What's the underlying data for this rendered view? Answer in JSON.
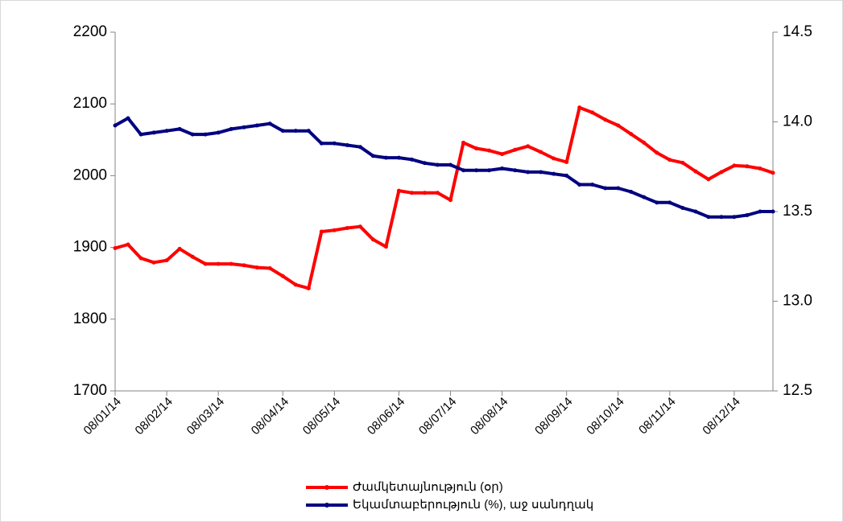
{
  "chart_data": {
    "type": "line",
    "categories": [
      "08/01/14",
      null,
      null,
      null,
      "08/02/14",
      null,
      null,
      null,
      "08/03/14",
      null,
      null,
      null,
      null,
      "08/04/14",
      null,
      null,
      null,
      "08/05/14",
      null,
      null,
      null,
      null,
      "08/06/14",
      null,
      null,
      null,
      "08/07/14",
      null,
      null,
      null,
      "08/08/14",
      null,
      null,
      null,
      null,
      "08/09/14",
      null,
      null,
      null,
      "08/10/14",
      null,
      null,
      null,
      "08/11/14",
      null,
      null,
      null,
      null,
      "08/12/14",
      null,
      null,
      null
    ],
    "series": [
      {
        "name": "Ժամկետայնություն  (օր)",
        "color": "#ff0000",
        "values": [
          1899,
          1904,
          1885,
          1879,
          1882,
          1898,
          1887,
          1877,
          1877,
          1877,
          1875,
          1872,
          1871,
          1860,
          1848,
          1843,
          1922,
          1924,
          1927,
          1929,
          1911,
          1901,
          1979,
          1976,
          1976,
          1976,
          1966,
          2046,
          2038,
          2035,
          2030,
          2036,
          2041,
          2033,
          2024,
          2019,
          2095,
          2088,
          2078,
          2070,
          2058,
          2046,
          2032,
          2022,
          2018,
          2006,
          1995,
          2005,
          2014,
          2013,
          2010,
          2004
        ]
      },
      {
        "name": "Եկամտաբերություն  (%), աջ սանդղակ",
        "color": "#000080",
        "axis": "y2",
        "values": [
          13.98,
          14.02,
          13.93,
          13.94,
          13.95,
          13.96,
          13.93,
          13.93,
          13.94,
          13.96,
          13.97,
          13.98,
          13.99,
          13.95,
          13.95,
          13.95,
          13.88,
          13.88,
          13.87,
          13.86,
          13.81,
          13.8,
          13.8,
          13.79,
          13.77,
          13.76,
          13.76,
          13.73,
          13.73,
          13.73,
          13.74,
          13.73,
          13.72,
          13.72,
          13.71,
          13.7,
          13.65,
          13.65,
          13.63,
          13.63,
          13.61,
          13.58,
          13.55,
          13.55,
          13.52,
          13.5,
          13.47,
          13.47,
          13.47,
          13.48,
          13.5,
          13.5
        ]
      }
    ],
    "ylim": [
      1700,
      2200
    ],
    "yticks": [
      1700,
      1800,
      1900,
      2000,
      2100,
      2200
    ],
    "y2lim": [
      12.5,
      14.5
    ],
    "y2ticks": [
      12.5,
      {
        "value": 13,
        "label": "13.0"
      },
      13.5,
      {
        "value": 14,
        "label": "14.0"
      },
      14.5
    ],
    "grid": false,
    "legend": "bottom"
  }
}
